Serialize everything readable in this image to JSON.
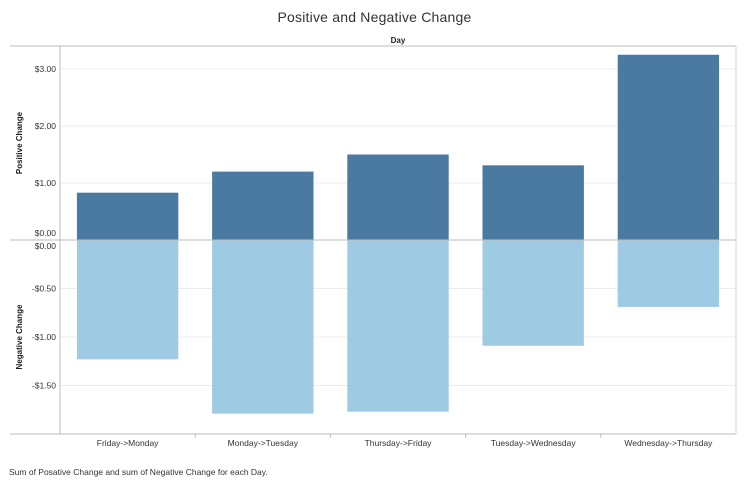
{
  "title": "Positive and Negative Change",
  "caption": "Sum of Posative Change and sum of Negative Change for each Day.",
  "chart_data": {
    "type": "bar",
    "column_header": "Day",
    "categories": [
      "Friday->Monday",
      "Monday->Tuesday",
      "Thursday->Friday",
      "Tuesday->Wednesday",
      "Wednesday->Thursday"
    ],
    "panels": [
      {
        "ylabel": "Positive Change",
        "ylim": [
          0,
          3.3
        ],
        "ticks": [
          0,
          1,
          2,
          3
        ],
        "tick_labels": [
          "$0.00",
          "$1.00",
          "$2.00",
          "$3.00"
        ],
        "color": "#4a7aa2",
        "values": [
          0.83,
          1.2,
          1.5,
          1.31,
          3.25
        ]
      },
      {
        "ylabel": "Negative Change",
        "ylim": [
          -1.95,
          0
        ],
        "ticks": [
          0,
          -0.5,
          -1,
          -1.5
        ],
        "tick_labels": [
          "$0.00",
          "-$0.50",
          "-$1.00",
          "-$1.50"
        ],
        "color": "#9ecae3",
        "values": [
          -1.23,
          -1.79,
          -1.77,
          -1.09,
          -0.69
        ]
      }
    ],
    "grid": true
  }
}
